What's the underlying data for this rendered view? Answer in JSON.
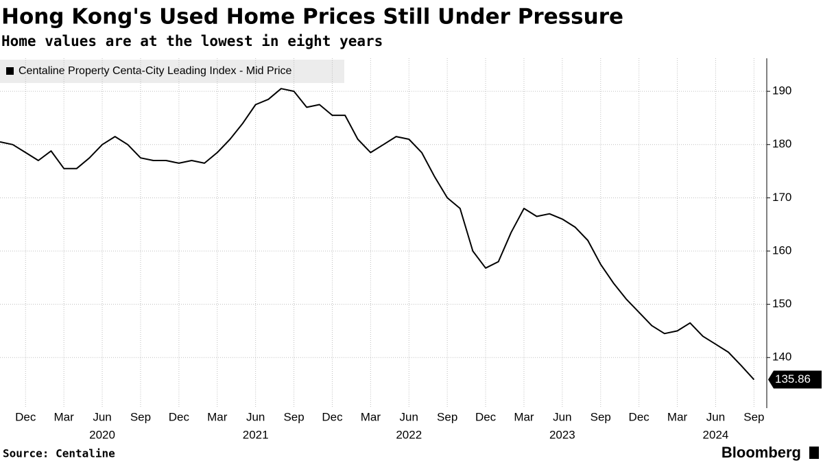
{
  "chart_data": {
    "type": "line",
    "title": "Hong Kong's Used Home Prices Still Under Pressure",
    "subtitle": "Home values are at the lowest in eight years",
    "source": "Source: Centaline",
    "brand": "Bloomberg",
    "x": [
      "2019-10",
      "2019-11",
      "2019-12",
      "2020-01",
      "2020-02",
      "2020-03",
      "2020-04",
      "2020-05",
      "2020-06",
      "2020-07",
      "2020-08",
      "2020-09",
      "2020-10",
      "2020-11",
      "2020-12",
      "2021-01",
      "2021-02",
      "2021-03",
      "2021-04",
      "2021-05",
      "2021-06",
      "2021-07",
      "2021-08",
      "2021-09",
      "2021-10",
      "2021-11",
      "2021-12",
      "2022-01",
      "2022-02",
      "2022-03",
      "2022-04",
      "2022-05",
      "2022-06",
      "2022-07",
      "2022-08",
      "2022-09",
      "2022-10",
      "2022-11",
      "2022-12",
      "2023-01",
      "2023-02",
      "2023-03",
      "2023-04",
      "2023-05",
      "2023-06",
      "2023-07",
      "2023-08",
      "2023-09",
      "2023-10",
      "2023-11",
      "2023-12",
      "2024-01",
      "2024-02",
      "2024-03",
      "2024-04",
      "2024-05",
      "2024-06",
      "2024-07",
      "2024-08",
      "2024-09"
    ],
    "series": [
      {
        "name": "Centaline Property Centa-City Leading Index - Mid Price",
        "color": "#000000",
        "values": [
          180.5,
          180,
          178.5,
          177,
          178.8,
          175.5,
          175.5,
          177.5,
          180,
          181.5,
          180,
          177.5,
          177,
          177,
          176.5,
          177,
          176.5,
          178.5,
          181,
          184,
          187.5,
          188.5,
          190.5,
          190,
          187,
          187.5,
          185.5,
          185.5,
          181,
          178.5,
          180,
          181.5,
          181,
          178.5,
          174,
          170,
          168,
          160,
          156.8,
          158,
          163.5,
          168,
          166.5,
          167,
          166,
          164.5,
          162,
          157.5,
          154,
          151,
          148.5,
          146,
          144.5,
          145,
          146.5,
          144,
          142.5,
          141,
          138.5,
          135.86
        ]
      }
    ],
    "xlim": [
      "2019-10",
      "2024-10"
    ],
    "xticks": [
      {
        "value": "2019-12",
        "label": "Dec"
      },
      {
        "value": "2020-03",
        "label": "Mar"
      },
      {
        "value": "2020-06",
        "label": "Jun"
      },
      {
        "value": "2020-09",
        "label": "Sep"
      },
      {
        "value": "2020-12",
        "label": "Dec"
      },
      {
        "value": "2021-03",
        "label": "Mar"
      },
      {
        "value": "2021-06",
        "label": "Jun"
      },
      {
        "value": "2021-09",
        "label": "Sep"
      },
      {
        "value": "2021-12",
        "label": "Dec"
      },
      {
        "value": "2022-03",
        "label": "Mar"
      },
      {
        "value": "2022-06",
        "label": "Jun"
      },
      {
        "value": "2022-09",
        "label": "Sep"
      },
      {
        "value": "2022-12",
        "label": "Dec"
      },
      {
        "value": "2023-03",
        "label": "Mar"
      },
      {
        "value": "2023-06",
        "label": "Jun"
      },
      {
        "value": "2023-09",
        "label": "Sep"
      },
      {
        "value": "2023-12",
        "label": "Dec"
      },
      {
        "value": "2024-03",
        "label": "Mar"
      },
      {
        "value": "2024-06",
        "label": "Jun"
      },
      {
        "value": "2024-09",
        "label": "Sep"
      }
    ],
    "year_labels": [
      {
        "value": "2020-06",
        "label": "2020"
      },
      {
        "value": "2021-06",
        "label": "2021"
      },
      {
        "value": "2022-06",
        "label": "2022"
      },
      {
        "value": "2023-06",
        "label": "2023"
      },
      {
        "value": "2024-06",
        "label": "2024"
      }
    ],
    "ylim": [
      130.5,
      196.2
    ],
    "yticks": [
      140,
      150,
      160,
      170,
      180,
      190
    ],
    "grid": true
  }
}
